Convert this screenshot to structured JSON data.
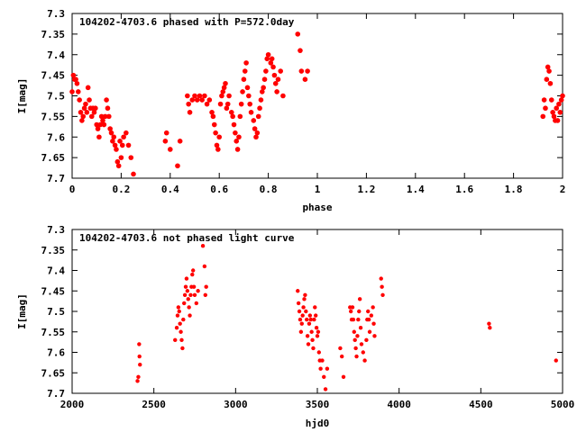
{
  "chart_data": [
    {
      "type": "scatter",
      "title": "104202-4703.6 phased with P=572.0day",
      "xlabel": "phase",
      "ylabel": "I[mag]",
      "xlim": [
        0,
        2
      ],
      "ylim": [
        7.7,
        7.3
      ],
      "y_inverted": true,
      "grid": false,
      "marker_color": "#ff0000",
      "xticks": [
        {
          "v": 0,
          "label": "0"
        },
        {
          "v": 0.2,
          "label": "0.2"
        },
        {
          "v": 0.4,
          "label": "0.4"
        },
        {
          "v": 0.6,
          "label": "0.6"
        },
        {
          "v": 0.8,
          "label": "0.8"
        },
        {
          "v": 1,
          "label": "1"
        },
        {
          "v": 1.2,
          "label": "1.2"
        },
        {
          "v": 1.4,
          "label": "1.4"
        },
        {
          "v": 1.6,
          "label": "1.6"
        },
        {
          "v": 1.8,
          "label": "1.8"
        },
        {
          "v": 2,
          "label": "2"
        }
      ],
      "yticks": [
        {
          "v": 7.3,
          "label": "7.3"
        },
        {
          "v": 7.35,
          "label": "7.35"
        },
        {
          "v": 7.4,
          "label": "7.4"
        },
        {
          "v": 7.45,
          "label": "7.45"
        },
        {
          "v": 7.5,
          "label": "7.5"
        },
        {
          "v": 7.55,
          "label": "7.55"
        },
        {
          "v": 7.6,
          "label": "7.6"
        },
        {
          "v": 7.65,
          "label": "7.65"
        },
        {
          "v": 7.7,
          "label": "7.7"
        }
      ],
      "points": [
        [
          0.0,
          7.49
        ],
        [
          0.005,
          7.45
        ],
        [
          0.01,
          7.46
        ],
        [
          0.015,
          7.46
        ],
        [
          0.02,
          7.47
        ],
        [
          0.025,
          7.49
        ],
        [
          0.03,
          7.51
        ],
        [
          0.035,
          7.54
        ],
        [
          0.04,
          7.56
        ],
        [
          0.045,
          7.55
        ],
        [
          0.05,
          7.53
        ],
        [
          0.055,
          7.52
        ],
        [
          0.06,
          7.54
        ],
        [
          0.065,
          7.48
        ],
        [
          0.07,
          7.51
        ],
        [
          0.075,
          7.53
        ],
        [
          0.08,
          7.55
        ],
        [
          0.085,
          7.53
        ],
        [
          0.09,
          7.54
        ],
        [
          0.095,
          7.53
        ],
        [
          0.1,
          7.57
        ],
        [
          0.105,
          7.58
        ],
        [
          0.11,
          7.6
        ],
        [
          0.115,
          7.57
        ],
        [
          0.12,
          7.55
        ],
        [
          0.125,
          7.56
        ],
        [
          0.13,
          7.57
        ],
        [
          0.135,
          7.55
        ],
        [
          0.14,
          7.51
        ],
        [
          0.145,
          7.53
        ],
        [
          0.15,
          7.55
        ],
        [
          0.155,
          7.58
        ],
        [
          0.16,
          7.59
        ],
        [
          0.165,
          7.61
        ],
        [
          0.17,
          7.6
        ],
        [
          0.175,
          7.62
        ],
        [
          0.18,
          7.63
        ],
        [
          0.185,
          7.66
        ],
        [
          0.19,
          7.67
        ],
        [
          0.195,
          7.61
        ],
        [
          0.2,
          7.65
        ],
        [
          0.205,
          7.62
        ],
        [
          0.21,
          7.6
        ],
        [
          0.22,
          7.59
        ],
        [
          0.23,
          7.62
        ],
        [
          0.24,
          7.65
        ],
        [
          0.25,
          7.69
        ],
        [
          0.38,
          7.61
        ],
        [
          0.385,
          7.59
        ],
        [
          0.4,
          7.63
        ],
        [
          0.43,
          7.67
        ],
        [
          0.44,
          7.61
        ],
        [
          0.47,
          7.5
        ],
        [
          0.475,
          7.52
        ],
        [
          0.48,
          7.54
        ],
        [
          0.49,
          7.51
        ],
        [
          0.5,
          7.5
        ],
        [
          0.51,
          7.51
        ],
        [
          0.52,
          7.5
        ],
        [
          0.53,
          7.51
        ],
        [
          0.54,
          7.5
        ],
        [
          0.55,
          7.52
        ],
        [
          0.56,
          7.51
        ],
        [
          0.57,
          7.54
        ],
        [
          0.575,
          7.55
        ],
        [
          0.58,
          7.57
        ],
        [
          0.585,
          7.59
        ],
        [
          0.59,
          7.62
        ],
        [
          0.595,
          7.63
        ],
        [
          0.6,
          7.6
        ],
        [
          0.605,
          7.52
        ],
        [
          0.61,
          7.5
        ],
        [
          0.615,
          7.49
        ],
        [
          0.62,
          7.48
        ],
        [
          0.625,
          7.47
        ],
        [
          0.63,
          7.53
        ],
        [
          0.635,
          7.52
        ],
        [
          0.64,
          7.5
        ],
        [
          0.65,
          7.54
        ],
        [
          0.655,
          7.55
        ],
        [
          0.66,
          7.57
        ],
        [
          0.665,
          7.59
        ],
        [
          0.67,
          7.61
        ],
        [
          0.675,
          7.63
        ],
        [
          0.68,
          7.6
        ],
        [
          0.685,
          7.55
        ],
        [
          0.69,
          7.52
        ],
        [
          0.695,
          7.49
        ],
        [
          0.7,
          7.46
        ],
        [
          0.705,
          7.44
        ],
        [
          0.71,
          7.42
        ],
        [
          0.715,
          7.48
        ],
        [
          0.72,
          7.5
        ],
        [
          0.725,
          7.52
        ],
        [
          0.73,
          7.54
        ],
        [
          0.74,
          7.56
        ],
        [
          0.745,
          7.58
        ],
        [
          0.75,
          7.6
        ],
        [
          0.755,
          7.59
        ],
        [
          0.76,
          7.55
        ],
        [
          0.765,
          7.53
        ],
        [
          0.77,
          7.51
        ],
        [
          0.775,
          7.49
        ],
        [
          0.78,
          7.48
        ],
        [
          0.785,
          7.46
        ],
        [
          0.79,
          7.44
        ],
        [
          0.795,
          7.41
        ],
        [
          0.8,
          7.4
        ],
        [
          0.81,
          7.42
        ],
        [
          0.815,
          7.41
        ],
        [
          0.82,
          7.43
        ],
        [
          0.825,
          7.45
        ],
        [
          0.83,
          7.47
        ],
        [
          0.835,
          7.49
        ],
        [
          0.84,
          7.46
        ],
        [
          0.85,
          7.44
        ],
        [
          0.86,
          7.5
        ],
        [
          0.92,
          7.35
        ],
        [
          0.93,
          7.39
        ],
        [
          0.935,
          7.44
        ],
        [
          0.95,
          7.46
        ],
        [
          0.96,
          7.44
        ],
        [
          1.92,
          7.55
        ],
        [
          1.925,
          7.51
        ],
        [
          1.93,
          7.53
        ],
        [
          1.935,
          7.46
        ],
        [
          1.94,
          7.43
        ],
        [
          1.945,
          7.44
        ],
        [
          1.95,
          7.47
        ],
        [
          1.955,
          7.51
        ],
        [
          1.96,
          7.54
        ],
        [
          1.965,
          7.55
        ],
        [
          1.97,
          7.56
        ],
        [
          1.975,
          7.53
        ],
        [
          1.98,
          7.56
        ],
        [
          1.985,
          7.52
        ],
        [
          1.99,
          7.54
        ],
        [
          1.995,
          7.51
        ],
        [
          2.0,
          7.5
        ]
      ]
    },
    {
      "type": "scatter",
      "title": "104202-4703.6 not phased light curve",
      "xlabel": "hjd0",
      "ylabel": "I[mag]",
      "xlim": [
        2000,
        5000
      ],
      "ylim": [
        7.7,
        7.3
      ],
      "y_inverted": true,
      "grid": false,
      "marker_color": "#ff0000",
      "xticks": [
        {
          "v": 2000,
          "label": "2000"
        },
        {
          "v": 2500,
          "label": "2500"
        },
        {
          "v": 3000,
          "label": "3000"
        },
        {
          "v": 3500,
          "label": "3500"
        },
        {
          "v": 4000,
          "label": "4000"
        },
        {
          "v": 4500,
          "label": "4500"
        },
        {
          "v": 5000,
          "label": "5000"
        }
      ],
      "yticks": [
        {
          "v": 7.3,
          "label": "7.3"
        },
        {
          "v": 7.35,
          "label": "7.35"
        },
        {
          "v": 7.4,
          "label": "7.4"
        },
        {
          "v": 7.45,
          "label": "7.45"
        },
        {
          "v": 7.5,
          "label": "7.5"
        },
        {
          "v": 7.55,
          "label": "7.55"
        },
        {
          "v": 7.6,
          "label": "7.6"
        },
        {
          "v": 7.65,
          "label": "7.65"
        },
        {
          "v": 7.7,
          "label": "7.7"
        }
      ],
      "points": [
        [
          2400,
          7.67
        ],
        [
          2405,
          7.66
        ],
        [
          2410,
          7.58
        ],
        [
          2412,
          7.61
        ],
        [
          2415,
          7.63
        ],
        [
          2630,
          7.57
        ],
        [
          2640,
          7.54
        ],
        [
          2645,
          7.51
        ],
        [
          2650,
          7.49
        ],
        [
          2655,
          7.5
        ],
        [
          2660,
          7.53
        ],
        [
          2665,
          7.55
        ],
        [
          2670,
          7.57
        ],
        [
          2675,
          7.59
        ],
        [
          2680,
          7.52
        ],
        [
          2685,
          7.48
        ],
        [
          2690,
          7.46
        ],
        [
          2695,
          7.44
        ],
        [
          2700,
          7.42
        ],
        [
          2705,
          7.45
        ],
        [
          2710,
          7.47
        ],
        [
          2715,
          7.49
        ],
        [
          2720,
          7.51
        ],
        [
          2725,
          7.46
        ],
        [
          2730,
          7.44
        ],
        [
          2735,
          7.41
        ],
        [
          2740,
          7.4
        ],
        [
          2745,
          7.44
        ],
        [
          2750,
          7.46
        ],
        [
          2760,
          7.48
        ],
        [
          2770,
          7.45
        ],
        [
          2800,
          7.34
        ],
        [
          2810,
          7.39
        ],
        [
          2815,
          7.46
        ],
        [
          2820,
          7.44
        ],
        [
          3380,
          7.45
        ],
        [
          3385,
          7.48
        ],
        [
          3390,
          7.5
        ],
        [
          3395,
          7.52
        ],
        [
          3400,
          7.55
        ],
        [
          3405,
          7.53
        ],
        [
          3410,
          7.51
        ],
        [
          3415,
          7.49
        ],
        [
          3420,
          7.47
        ],
        [
          3425,
          7.46
        ],
        [
          3430,
          7.5
        ],
        [
          3435,
          7.52
        ],
        [
          3440,
          7.56
        ],
        [
          3445,
          7.58
        ],
        [
          3450,
          7.53
        ],
        [
          3455,
          7.51
        ],
        [
          3460,
          7.52
        ],
        [
          3465,
          7.55
        ],
        [
          3470,
          7.57
        ],
        [
          3475,
          7.59
        ],
        [
          3480,
          7.52
        ],
        [
          3485,
          7.49
        ],
        [
          3490,
          7.51
        ],
        [
          3495,
          7.54
        ],
        [
          3500,
          7.56
        ],
        [
          3505,
          7.55
        ],
        [
          3510,
          7.6
        ],
        [
          3515,
          7.62
        ],
        [
          3520,
          7.64
        ],
        [
          3530,
          7.62
        ],
        [
          3540,
          7.66
        ],
        [
          3550,
          7.69
        ],
        [
          3560,
          7.64
        ],
        [
          3640,
          7.59
        ],
        [
          3650,
          7.61
        ],
        [
          3660,
          7.66
        ],
        [
          3700,
          7.49
        ],
        [
          3705,
          7.5
        ],
        [
          3710,
          7.52
        ],
        [
          3715,
          7.49
        ],
        [
          3720,
          7.52
        ],
        [
          3725,
          7.55
        ],
        [
          3730,
          7.57
        ],
        [
          3735,
          7.59
        ],
        [
          3740,
          7.61
        ],
        [
          3745,
          7.56
        ],
        [
          3750,
          7.52
        ],
        [
          3755,
          7.5
        ],
        [
          3760,
          7.47
        ],
        [
          3765,
          7.54
        ],
        [
          3770,
          7.58
        ],
        [
          3780,
          7.6
        ],
        [
          3790,
          7.62
        ],
        [
          3800,
          7.57
        ],
        [
          3805,
          7.52
        ],
        [
          3810,
          7.5
        ],
        [
          3815,
          7.52
        ],
        [
          3820,
          7.55
        ],
        [
          3830,
          7.51
        ],
        [
          3840,
          7.49
        ],
        [
          3845,
          7.53
        ],
        [
          3850,
          7.56
        ],
        [
          3890,
          7.42
        ],
        [
          3895,
          7.44
        ],
        [
          3900,
          7.46
        ],
        [
          4550,
          7.53
        ],
        [
          4555,
          7.54
        ],
        [
          4960,
          7.62
        ]
      ]
    }
  ]
}
